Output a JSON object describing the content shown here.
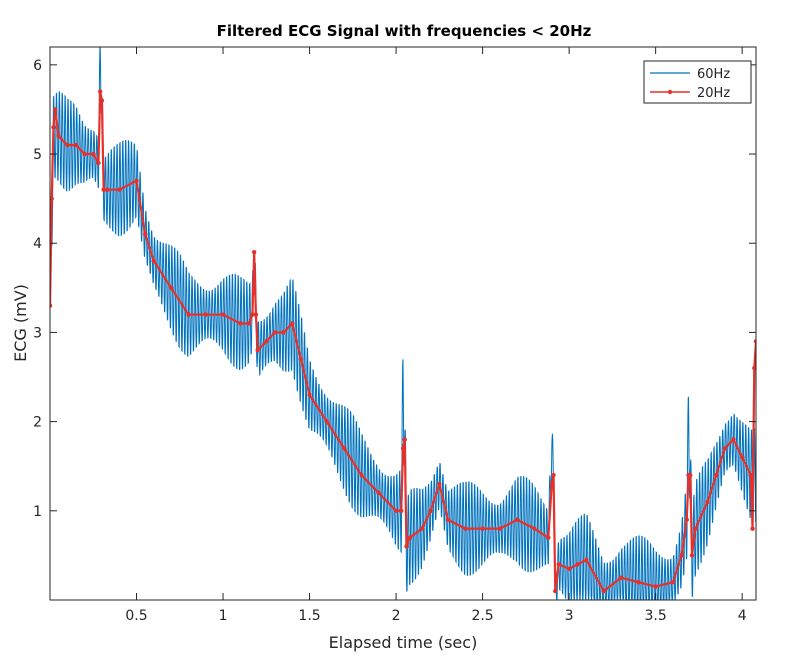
{
  "chart_data": {
    "type": "line",
    "title": "Filtered ECG Signal with frequencies < 20Hz",
    "xlabel": "Elapsed time (sec)",
    "ylabel": "ECG (mV)",
    "xlim": [
      0,
      4.08
    ],
    "ylim": [
      0,
      6.2
    ],
    "xticks": [
      0.5,
      1,
      1.5,
      2,
      2.5,
      3,
      3.5,
      4
    ],
    "xtick_labels": [
      "0.5",
      "1",
      "1.5",
      "2",
      "2.5",
      "3",
      "3.5",
      "4"
    ],
    "yticks": [
      1,
      2,
      3,
      4,
      5,
      6
    ],
    "ytick_labels": [
      "1",
      "2",
      "3",
      "4",
      "5",
      "6"
    ],
    "legend": [
      "60Hz",
      "20Hz"
    ],
    "legend_location": "top-right",
    "colors": {
      "series_60": "#0072BD",
      "series_20": "#E8302A",
      "axes": "#262626"
    },
    "series": [
      {
        "name": "60Hz",
        "noise_amplitude": 0.55,
        "x": [
          0,
          0.02,
          0.05,
          0.1,
          0.15,
          0.2,
          0.25,
          0.28,
          0.29,
          0.3,
          0.31,
          0.33,
          0.4,
          0.5,
          0.55,
          0.6,
          0.7,
          0.8,
          0.9,
          1.0,
          1.1,
          1.15,
          1.17,
          1.18,
          1.19,
          1.2,
          1.25,
          1.3,
          1.35,
          1.4,
          1.45,
          1.5,
          1.6,
          1.7,
          1.8,
          1.9,
          2.0,
          2.03,
          2.04,
          2.05,
          2.06,
          2.08,
          2.15,
          2.2,
          2.25,
          2.3,
          2.4,
          2.5,
          2.6,
          2.7,
          2.8,
          2.88,
          2.9,
          2.91,
          2.92,
          2.94,
          3.0,
          3.05,
          3.1,
          3.2,
          3.3,
          3.4,
          3.5,
          3.6,
          3.65,
          3.68,
          3.69,
          3.7,
          3.71,
          3.73,
          3.8,
          3.85,
          3.9,
          3.95,
          4.0,
          4.05,
          4.08
        ],
        "y": [
          3.3,
          5.2,
          5.2,
          5.1,
          5.1,
          5.0,
          5.0,
          4.9,
          6.1,
          5.6,
          4.6,
          4.6,
          4.6,
          4.7,
          4.1,
          3.8,
          3.5,
          3.2,
          3.2,
          3.2,
          3.1,
          3.1,
          3.2,
          3.9,
          3.2,
          2.8,
          2.9,
          3.0,
          3.0,
          3.1,
          2.7,
          2.3,
          2.0,
          1.7,
          1.4,
          1.2,
          1.0,
          1.0,
          2.4,
          1.8,
          0.6,
          0.7,
          0.8,
          1.0,
          1.3,
          0.9,
          0.8,
          0.8,
          0.8,
          0.9,
          0.8,
          0.7,
          1.7,
          1.4,
          0.1,
          0.4,
          0.35,
          0.4,
          0.45,
          0.1,
          0.25,
          0.2,
          0.15,
          0.2,
          0.5,
          0.9,
          2.0,
          1.4,
          0.5,
          0.8,
          1.1,
          1.4,
          1.7,
          1.8,
          1.6,
          1.4,
          1.4
        ]
      },
      {
        "name": "20Hz",
        "x": [
          0,
          0.01,
          0.02,
          0.03,
          0.05,
          0.1,
          0.15,
          0.2,
          0.25,
          0.28,
          0.29,
          0.3,
          0.31,
          0.33,
          0.4,
          0.5,
          0.55,
          0.6,
          0.7,
          0.8,
          0.9,
          1.0,
          1.1,
          1.15,
          1.17,
          1.18,
          1.19,
          1.2,
          1.25,
          1.3,
          1.35,
          1.4,
          1.45,
          1.5,
          1.6,
          1.7,
          1.8,
          1.9,
          2.0,
          2.03,
          2.04,
          2.05,
          2.06,
          2.08,
          2.15,
          2.2,
          2.25,
          2.3,
          2.4,
          2.5,
          2.6,
          2.7,
          2.8,
          2.88,
          2.9,
          2.91,
          2.92,
          2.94,
          3.0,
          3.05,
          3.1,
          3.2,
          3.3,
          3.4,
          3.5,
          3.6,
          3.65,
          3.68,
          3.69,
          3.7,
          3.71,
          3.73,
          3.8,
          3.85,
          3.9,
          3.95,
          4.0,
          4.05,
          4.06,
          4.07,
          4.08
        ],
        "y": [
          3.3,
          4.5,
          5.3,
          5.5,
          5.2,
          5.1,
          5.1,
          5.0,
          5.0,
          4.9,
          5.7,
          5.6,
          4.6,
          4.6,
          4.6,
          4.7,
          4.1,
          3.8,
          3.5,
          3.2,
          3.2,
          3.2,
          3.1,
          3.1,
          3.2,
          3.9,
          3.2,
          2.8,
          2.9,
          3.0,
          3.0,
          3.1,
          2.7,
          2.3,
          2.0,
          1.7,
          1.4,
          1.2,
          1.0,
          1.0,
          1.7,
          1.8,
          0.6,
          0.7,
          0.8,
          1.0,
          1.3,
          0.9,
          0.8,
          0.8,
          0.8,
          0.9,
          0.8,
          0.7,
          1.3,
          1.4,
          0.1,
          0.4,
          0.35,
          0.4,
          0.45,
          0.1,
          0.25,
          0.2,
          0.15,
          0.2,
          0.5,
          0.9,
          1.4,
          1.4,
          0.5,
          0.8,
          1.1,
          1.4,
          1.7,
          1.8,
          1.6,
          1.4,
          0.8,
          2.6,
          2.9
        ]
      }
    ]
  }
}
